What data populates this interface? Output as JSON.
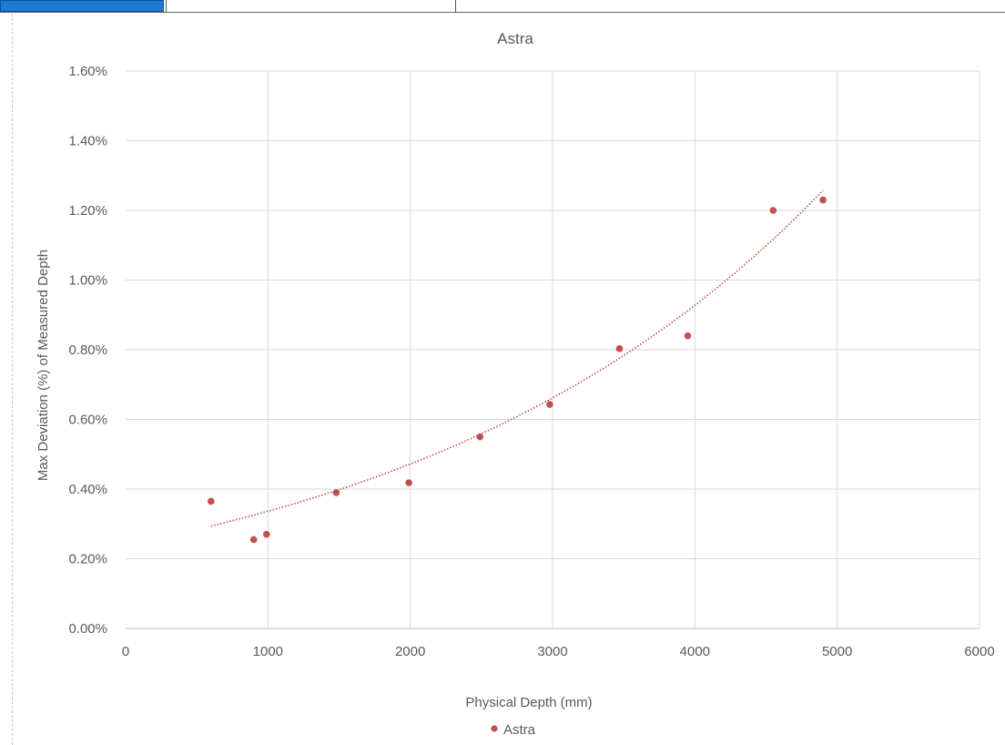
{
  "chart_data": {
    "type": "scatter",
    "title": "Astra",
    "xlabel": "Physical Depth (mm)",
    "ylabel": "Max Deviation (%) of Measured Depth",
    "xlim": [
      0,
      6000
    ],
    "ylim": [
      0,
      0.016
    ],
    "x_ticks": [
      "0",
      "1000",
      "2000",
      "3000",
      "4000",
      "5000",
      "6000"
    ],
    "y_ticks": [
      "0.00%",
      "0.20%",
      "0.40%",
      "0.60%",
      "0.80%",
      "1.00%",
      "1.20%",
      "1.40%",
      "1.60%"
    ],
    "grid": true,
    "legend": "bottom",
    "series": [
      {
        "name": "Astra",
        "color": "#c0504d",
        "x": [
          600,
          900,
          990,
          1480,
          1990,
          2490,
          2980,
          3470,
          3950,
          4550,
          4900
        ],
        "y": [
          0.00365,
          0.00255,
          0.0027,
          0.0039,
          0.00418,
          0.0055,
          0.00643,
          0.00803,
          0.0084,
          0.012,
          0.0123
        ]
      }
    ],
    "trendline": {
      "type": "exponential",
      "color": "#c0504d",
      "style": "dotted",
      "x_range": [
        600,
        4900
      ],
      "coefficient": 0.0024,
      "exponent": 0.000338
    }
  }
}
